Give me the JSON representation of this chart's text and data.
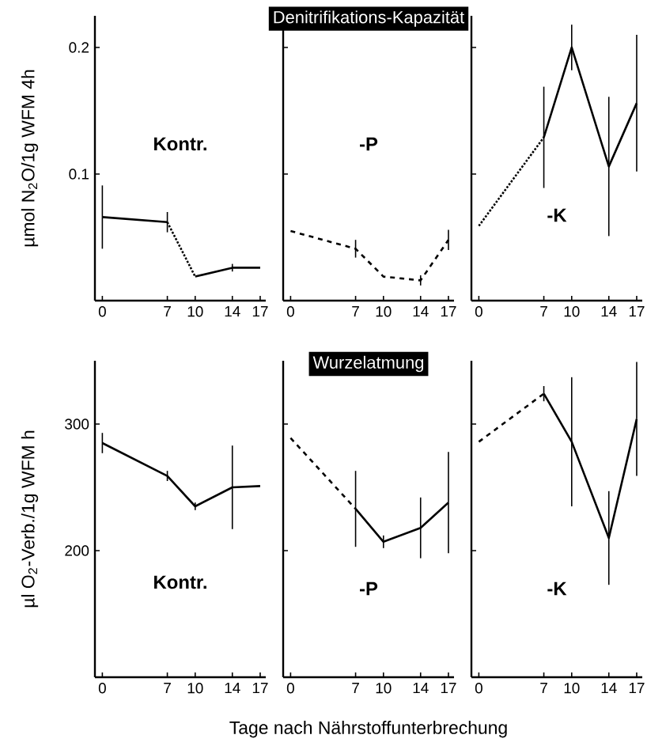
{
  "chart_data": [
    {
      "type": "line",
      "ylabel": "µmol N$_{2}$O/1g WFM 4h",
      "annotations": [
        "Kontr."
      ],
      "xlim": [
        -0.8,
        17.6
      ],
      "xticks": [
        0,
        7,
        10,
        14,
        17
      ],
      "ylim": [
        0,
        0.225
      ],
      "yticks": [
        0.1,
        0.2
      ],
      "marker": "none",
      "series": [
        {
          "color": "#000000",
          "line_style": "solid",
          "x": [
            0,
            7
          ],
          "values": [
            0.066,
            0.062
          ],
          "errors": [
            0.025,
            0.008
          ]
        },
        {
          "color": "#000000",
          "line_style": "dotted",
          "x": [
            7,
            10
          ],
          "values": [
            0.062,
            0.019
          ],
          "errors": [
            null,
            null
          ]
        },
        {
          "color": "#000000",
          "line_style": "solid",
          "x": [
            10,
            14,
            17
          ],
          "values": [
            0.019,
            0.026,
            0.026
          ],
          "errors": [
            null,
            0.003,
            null
          ]
        }
      ]
    },
    {
      "type": "line",
      "title": "Denitrifikations-Kapazität",
      "annotations": [
        "-P"
      ],
      "xlim": [
        -0.8,
        17.6
      ],
      "xticks": [
        0,
        7,
        10,
        14,
        17
      ],
      "ylim": [
        0,
        0.225
      ],
      "yticks": [
        0.1,
        0.2
      ],
      "tick_labels": "x",
      "marker": "none",
      "series": [
        {
          "color": "#000000",
          "line_style": "dashed",
          "x": [
            0,
            7,
            10,
            14,
            17
          ],
          "values": [
            0.055,
            0.041,
            0.019,
            0.016,
            0.048
          ],
          "errors": [
            null,
            0.007,
            null,
            0.004,
            0.008
          ]
        }
      ]
    },
    {
      "type": "line",
      "annotations": [
        "-K"
      ],
      "xlim": [
        -0.8,
        17.6
      ],
      "xticks": [
        0,
        7,
        10,
        14,
        17
      ],
      "ylim": [
        0,
        0.225
      ],
      "yticks": [
        0.1,
        0.2
      ],
      "tick_labels": "x",
      "marker": "none",
      "series": [
        {
          "color": "#000000",
          "line_style": "dotted",
          "x": [
            0,
            7
          ],
          "values": [
            0.059,
            0.129
          ],
          "errors": [
            null,
            null
          ]
        },
        {
          "color": "#000000",
          "line_style": "solid",
          "x": [
            7,
            10,
            14,
            17
          ],
          "values": [
            0.129,
            0.2,
            0.106,
            0.156
          ],
          "errors": [
            0.04,
            0.018,
            0.055,
            0.054
          ]
        }
      ]
    },
    {
      "type": "line",
      "ylabel": "µl O$_{2}$-Verb./1g WFM h",
      "annotations": [
        "Kontr."
      ],
      "xlim": [
        -0.8,
        17.6
      ],
      "xticks": [
        0,
        7,
        10,
        14,
        17
      ],
      "ylim": [
        100,
        350
      ],
      "yticks": [
        200,
        300
      ],
      "marker": "none",
      "series": [
        {
          "color": "#000000",
          "line_style": "solid",
          "x": [
            0,
            7,
            10,
            14,
            17
          ],
          "values": [
            285,
            259,
            235,
            250,
            251
          ],
          "errors": [
            8,
            4,
            3,
            33,
            null
          ]
        }
      ]
    },
    {
      "type": "line",
      "title": "Wurzelatmung",
      "xlabel": "Tage nach Nährstoffunterbrechung",
      "annotations": [
        "-P"
      ],
      "xlim": [
        -0.8,
        17.6
      ],
      "xticks": [
        0,
        7,
        10,
        14,
        17
      ],
      "ylim": [
        100,
        350
      ],
      "yticks": [
        200,
        300
      ],
      "tick_labels": "x",
      "marker": "none",
      "series": [
        {
          "color": "#000000",
          "line_style": "dashed",
          "x": [
            0,
            7
          ],
          "values": [
            289,
            233
          ],
          "errors": [
            null,
            null
          ]
        },
        {
          "color": "#000000",
          "line_style": "solid",
          "x": [
            7,
            10,
            14,
            17
          ],
          "values": [
            233,
            207,
            218,
            238
          ],
          "errors": [
            30,
            5,
            24,
            40
          ]
        }
      ]
    },
    {
      "type": "line",
      "annotations": [
        "-K"
      ],
      "xlim": [
        -0.8,
        17.6
      ],
      "xticks": [
        0,
        7,
        10,
        14,
        17
      ],
      "ylim": [
        100,
        350
      ],
      "yticks": [
        200,
        300
      ],
      "tick_labels": "x",
      "marker": "none",
      "series": [
        {
          "color": "#000000",
          "line_style": "dashed",
          "x": [
            0,
            7
          ],
          "values": [
            286,
            324
          ],
          "errors": [
            null,
            null
          ]
        },
        {
          "color": "#000000",
          "line_style": "solid",
          "x": [
            7,
            10,
            14,
            17
          ],
          "values": [
            324,
            286,
            210,
            304
          ],
          "errors": [
            6,
            51,
            37,
            45
          ]
        }
      ]
    }
  ]
}
